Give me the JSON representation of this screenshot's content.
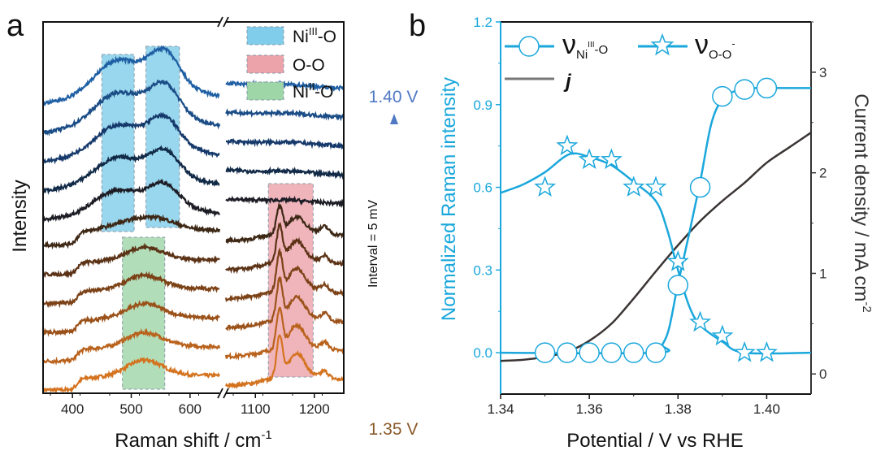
{
  "panel_labels": {
    "a": "a",
    "b": "b"
  },
  "chart_data": [
    {
      "type": "line",
      "panel": "a",
      "xlabel": "Raman shift / cm",
      "xlabel_sup": "-1",
      "ylabel": "Intensity",
      "x_segments": [
        [
          350,
          650
        ],
        [
          1050,
          1250
        ]
      ],
      "x_ticks": [
        [
          "400",
          "500",
          "600"
        ],
        [
          "1100",
          "1200"
        ]
      ],
      "x_tick_values": [
        [
          400,
          500,
          600
        ],
        [
          1100,
          1200
        ]
      ],
      "axis_break": true,
      "legend": [
        {
          "label_main": "Ni",
          "label_sup": "III",
          "label_tail": "-O",
          "color": "#7fcdea"
        },
        {
          "label_main": "O-O",
          "label_sup": "",
          "label_tail": "",
          "color": "#eca3aa"
        },
        {
          "label_main": "Ni",
          "label_sup": "II",
          "label_tail": "-O",
          "color": "#9ed6a8"
        }
      ],
      "legend_placement": "top-right",
      "highlight_regions": [
        {
          "band": "Ni(III)-O",
          "x": [
            450,
            505
          ],
          "color": "#7fcdea"
        },
        {
          "band": "Ni(III)-O",
          "x": [
            525,
            582
          ],
          "color": "#7fcdea"
        },
        {
          "band": "Ni(II)-O",
          "x": [
            485,
            557
          ],
          "color": "#9ed6a8"
        },
        {
          "band": "O-O",
          "x": [
            1122,
            1198
          ],
          "color": "#eca3aa"
        }
      ],
      "potentials_V": [
        1.35,
        1.355,
        1.36,
        1.365,
        1.37,
        1.375,
        1.38,
        1.385,
        1.39,
        1.395,
        1.4
      ],
      "series_colors": [
        "#d4731f",
        "#b9621c",
        "#9b521a",
        "#7c4217",
        "#5b3215",
        "#3d2715",
        "#1d1d26",
        "#112a47",
        "#15396a",
        "#1a4c86",
        "#1f5fa3"
      ],
      "peak_amplitudes_au": {
        "NiIII_O_475_555": [
          0,
          0,
          0,
          0,
          0,
          0.15,
          0.75,
          0.85,
          0.95,
          1.05,
          1.15
        ],
        "NiII_O_520": [
          0.45,
          0.4,
          0.4,
          0.38,
          0.35,
          0.2,
          0,
          0,
          0,
          0,
          0
        ],
        "O_O_1140_1170": [
          1.6,
          1.5,
          1.5,
          1.45,
          1.35,
          1.0,
          0.3,
          0,
          0,
          0,
          0
        ]
      },
      "annotations": {
        "top": "1.40 V",
        "bottom": "1.35 V",
        "interval": "Interval = 5 mV",
        "top_color": "#4f79c4",
        "bottom_color": "#8b5a2b"
      }
    },
    {
      "type": "line",
      "panel": "b",
      "xlabel": "Potential / V vs RHE",
      "ylabel_left": "Normalized Raman intensity",
      "ylabel_right": "Current density / mA cm",
      "ylabel_right_sup": "-2",
      "xlim": [
        1.34,
        1.41
      ],
      "ylim_left": [
        -0.15,
        1.2
      ],
      "ylim_right": [
        -0.2,
        3.5
      ],
      "x_ticks": [
        "1.34",
        "1.36",
        "1.38",
        "1.40"
      ],
      "x_tick_values": [
        1.34,
        1.36,
        1.38,
        1.4
      ],
      "y_ticks_left": [
        "0.0",
        "0.3",
        "0.6",
        "0.9",
        "1.2"
      ],
      "y_tick_values_left": [
        0.0,
        0.3,
        0.6,
        0.9,
        1.2
      ],
      "y_ticks_right": [
        "0",
        "1",
        "2",
        "3"
      ],
      "y_tick_values_right": [
        0,
        1,
        2,
        3
      ],
      "left_color": "#1aa7dc",
      "right_color": "#333333",
      "legend_placement": "top-left",
      "series": [
        {
          "name": "ν",
          "name_sub": "Ni",
          "name_sup": "III",
          "name_tail": "-O",
          "marker": "circle",
          "color": "#1aa7dc",
          "axis": "left",
          "x": [
            1.35,
            1.355,
            1.36,
            1.365,
            1.37,
            1.375,
            1.38,
            1.385,
            1.39,
            1.395,
            1.4
          ],
          "y": [
            0,
            0,
            0,
            0,
            0,
            0,
            0.245,
            0.6,
            0.93,
            0.955,
            0.96
          ],
          "fit_x": [
            1.34,
            1.375,
            1.3765,
            1.378,
            1.38,
            1.3825,
            1.385,
            1.3875,
            1.39,
            1.393,
            1.396,
            1.41
          ],
          "fit_y": [
            0,
            0,
            0.03,
            0.09,
            0.25,
            0.43,
            0.62,
            0.83,
            0.92,
            0.95,
            0.96,
            0.96
          ]
        },
        {
          "name": "ν",
          "name_sub": "O-O",
          "name_sup": "-",
          "name_tail": "",
          "marker": "star",
          "color": "#1aa7dc",
          "axis": "left",
          "x": [
            1.35,
            1.355,
            1.36,
            1.365,
            1.37,
            1.375,
            1.38,
            1.385,
            1.39,
            1.395,
            1.4
          ],
          "y": [
            0.6,
            0.75,
            0.7,
            0.7,
            0.6,
            0.6,
            0.33,
            0.11,
            0.06,
            0.0,
            0.0
          ],
          "fit_x": [
            1.34,
            1.345,
            1.35,
            1.3555,
            1.36,
            1.365,
            1.37,
            1.375,
            1.3775,
            1.38,
            1.3825,
            1.385,
            1.39,
            1.395,
            1.41
          ],
          "fit_y": [
            0.58,
            0.61,
            0.655,
            0.72,
            0.71,
            0.68,
            0.62,
            0.55,
            0.45,
            0.3,
            0.17,
            0.1,
            0.04,
            0.0,
            0.0
          ]
        },
        {
          "name": "j",
          "marker": "none",
          "color": "#3a3433",
          "axis": "right",
          "x": [
            1.34,
            1.345,
            1.35,
            1.355,
            1.36,
            1.365,
            1.37,
            1.375,
            1.38,
            1.385,
            1.39,
            1.395,
            1.4,
            1.405,
            1.41
          ],
          "y": [
            0.13,
            0.14,
            0.17,
            0.22,
            0.33,
            0.5,
            0.75,
            1.02,
            1.28,
            1.52,
            1.72,
            1.9,
            2.1,
            2.25,
            2.4
          ]
        }
      ]
    }
  ]
}
